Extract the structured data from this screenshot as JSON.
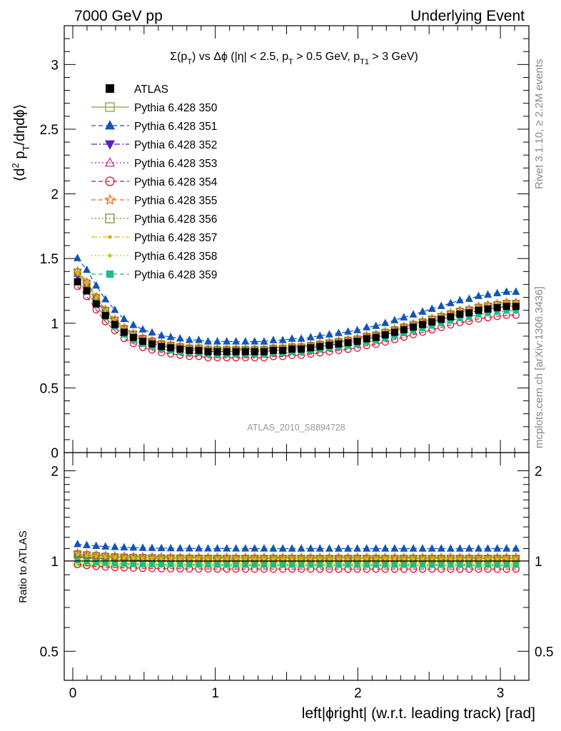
{
  "header": {
    "left": "7000 GeV pp",
    "right": "Underlying Event"
  },
  "plot_title": "Σ(p_T) vs Δφ (|η| < 2.5, p_T > 0.5 GeV, p_T1 > 3 GeV)",
  "side_labels": {
    "rivet": "Rivet 3.1.10, ≥ 2.2M events",
    "mcplots": "mcplots.cern.ch [arXiv:1306.3436]"
  },
  "watermark": "ATLAS_2010_S8894728",
  "main_ylabel": "⟨d² p_T/dηdφ⟩",
  "ratio_ylabel": "Ratio to ATLAS",
  "xlabel": "left|ϕright| (w.r.t. leading track) [rad]",
  "colors": {
    "s350": "#999933",
    "s351": "#1155bb",
    "s352": "#5522bb",
    "s353": "#bb2288",
    "s354": "#dd1133",
    "s355": "#ee6611",
    "s356": "#888822",
    "s357": "#ccbb11",
    "s358": "#bbcc00",
    "s359": "#22bb88",
    "band_inner": "#ffff66",
    "band_outer": "#bbee88"
  },
  "chart_data": [
    {
      "type": "scatter",
      "panel": "main",
      "xlabel": "left|ϕright| (w.r.t. leading track) [rad]",
      "ylabel": "⟨d² p_T/dηdφ⟩",
      "xlim": [
        -0.06,
        3.2
      ],
      "ylim": [
        0,
        3.3
      ],
      "xticks": [
        0,
        1,
        2,
        3
      ],
      "yticks": [
        0,
        0.5,
        1,
        1.5,
        2,
        2.5,
        3
      ],
      "ytick_labels": [
        "0",
        "0.5",
        "1",
        "1.5",
        "2",
        "2.5",
        "3"
      ],
      "legend_position": "top-left",
      "x": [
        0.033,
        0.098,
        0.164,
        0.229,
        0.295,
        0.36,
        0.425,
        0.491,
        0.556,
        0.622,
        0.687,
        0.753,
        0.818,
        0.884,
        0.949,
        1.014,
        1.08,
        1.145,
        1.211,
        1.276,
        1.342,
        1.407,
        1.473,
        1.538,
        1.603,
        1.669,
        1.734,
        1.8,
        1.865,
        1.931,
        1.996,
        2.062,
        2.127,
        2.192,
        2.258,
        2.323,
        2.389,
        2.454,
        2.52,
        2.585,
        2.651,
        2.716,
        2.781,
        2.847,
        2.912,
        2.978,
        3.043,
        3.109
      ],
      "series": [
        {
          "name": "ATLAS",
          "marker": "square-filled",
          "color": "#000000",
          "values": [
            1.32,
            1.25,
            1.15,
            1.06,
            0.99,
            0.93,
            0.89,
            0.86,
            0.84,
            0.82,
            0.81,
            0.8,
            0.79,
            0.79,
            0.78,
            0.78,
            0.78,
            0.78,
            0.78,
            0.78,
            0.78,
            0.79,
            0.79,
            0.8,
            0.8,
            0.81,
            0.82,
            0.83,
            0.84,
            0.85,
            0.86,
            0.88,
            0.89,
            0.91,
            0.93,
            0.95,
            0.97,
            0.99,
            1.01,
            1.03,
            1.05,
            1.07,
            1.08,
            1.1,
            1.11,
            1.12,
            1.13,
            1.13
          ]
        },
        {
          "name": "Pythia 6.428 350",
          "marker": "square-open",
          "line": "solid",
          "colorKey": "s350",
          "factor": 1.02
        },
        {
          "name": "Pythia 6.428 351",
          "marker": "triangle-filled",
          "line": "dashed",
          "colorKey": "s351",
          "factor": 1.1
        },
        {
          "name": "Pythia 6.428 352",
          "marker": "triangle-down-filled",
          "line": "dashdot",
          "colorKey": "s352",
          "factor": 1.0
        },
        {
          "name": "Pythia 6.428 353",
          "marker": "triangle-open",
          "line": "dotted",
          "colorKey": "s353",
          "factor": 1.01
        },
        {
          "name": "Pythia 6.428 354",
          "marker": "circle-open",
          "line": "dashed",
          "colorKey": "s354",
          "factor": 0.94
        },
        {
          "name": "Pythia 6.428 355",
          "marker": "star-open",
          "line": "dashed",
          "colorKey": "s355",
          "factor": 1.03
        },
        {
          "name": "Pythia 6.428 356",
          "marker": "square-open",
          "line": "dotted",
          "colorKey": "s356",
          "factor": 1.02
        },
        {
          "name": "Pythia 6.428 357",
          "marker": "small-dot",
          "line": "dashdot",
          "colorKey": "s357",
          "factor": 1.02
        },
        {
          "name": "Pythia 6.428 358",
          "marker": "small-dot",
          "line": "dotted",
          "colorKey": "s358",
          "factor": 1.01
        },
        {
          "name": "Pythia 6.428 359",
          "marker": "square-filled-small",
          "line": "dashed",
          "colorKey": "s359",
          "factor": 0.97
        }
      ]
    },
    {
      "type": "scatter",
      "panel": "ratio",
      "ylabel": "Ratio to ATLAS",
      "ylim": [
        0.4,
        2.3
      ],
      "yscale": "log",
      "yticks": [
        0.5,
        1,
        2
      ],
      "ytick_labels": [
        "0.5",
        "1",
        "2"
      ],
      "xticks": [
        0,
        1,
        2,
        3
      ],
      "xtick_labels": [
        "0",
        "1",
        "2",
        "3"
      ],
      "band_inner": [
        0.98,
        1.02
      ],
      "band_outer": [
        0.95,
        1.05
      ]
    }
  ]
}
